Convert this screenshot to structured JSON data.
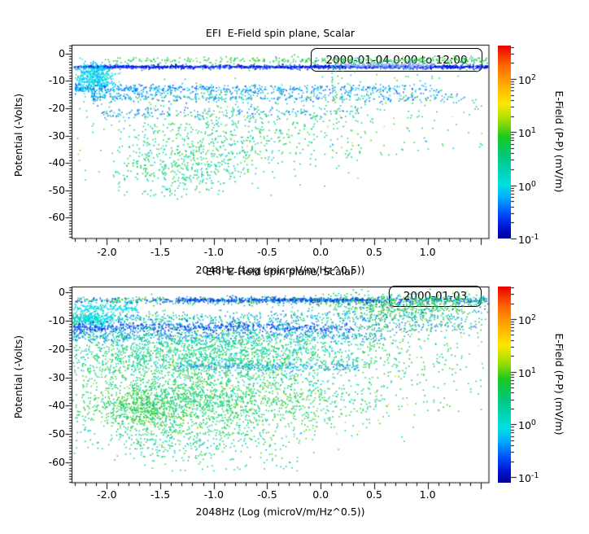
{
  "figure": {
    "background": "#ffffff",
    "text_color": "#000000"
  },
  "colorbar": {
    "label": "E-Field (P-P) (mV/m)",
    "ticks": [
      {
        "base": "10",
        "exp": "2"
      },
      {
        "base": "10",
        "exp": "1"
      },
      {
        "base": "10",
        "exp": "0"
      },
      {
        "base": "10",
        "exp": "-1"
      }
    ],
    "scale": "log",
    "min": 0.1,
    "max": 400
  },
  "plots": [
    {
      "title": "EFI  E-Field spin plane, Scalar",
      "legend": "2000-01-04 0:00 to 12:00",
      "xlabel": "2048Hz (Log (microV/m/Hz^0.5))",
      "ylabel": "Potential (-Volts)",
      "x_ticks": [
        "-2.0",
        "-1.5",
        "-1.0",
        "-0.5",
        "0.0",
        "0.5",
        "1.0"
      ],
      "y_ticks": [
        "0",
        "-10",
        "-20",
        "-30",
        "-40",
        "-50",
        "-60"
      ]
    },
    {
      "title": "EFI  E-Field spin plane, Scalar",
      "legend": "2000-01-03",
      "xlabel": "2048Hz (Log (microV/m/Hz^0.5))",
      "ylabel": "Potential (-Volts)",
      "x_ticks": [
        "-2.0",
        "-1.5",
        "-1.0",
        "-0.5",
        "0.0",
        "0.5",
        "1.0"
      ],
      "y_ticks": [
        "0",
        "-10",
        "-20",
        "-30",
        "-40",
        "-50",
        "-60"
      ]
    }
  ],
  "colormap_stops": [
    [
      0.0,
      "#e80000"
    ],
    [
      0.1,
      "#ff6400"
    ],
    [
      0.2,
      "#ffaa00"
    ],
    [
      0.3,
      "#ffe600"
    ],
    [
      0.38,
      "#a8e000"
    ],
    [
      0.47,
      "#1ec81e"
    ],
    [
      0.57,
      "#00c878"
    ],
    [
      0.65,
      "#00d2b4"
    ],
    [
      0.72,
      "#00e0e0"
    ],
    [
      0.79,
      "#00aaff"
    ],
    [
      0.87,
      "#0050ff"
    ],
    [
      0.94,
      "#0014d2"
    ],
    [
      1.0,
      "#000096"
    ]
  ],
  "chart_data": [
    {
      "type": "scatter",
      "title": "EFI  E-Field spin plane, Scalar",
      "subtitle": "2000-01-04 0:00 to 12:00",
      "xlabel": "2048Hz (Log (microV/m/Hz^0.5))",
      "ylabel": "Potential (-Volts)",
      "xlim": [
        -2.33,
        1.57
      ],
      "ylim": [
        -67.65,
        3.05
      ],
      "grid": false,
      "legend_position": "top-right",
      "color_scale": {
        "label": "E-Field (P-P) (mV/m)",
        "type": "log",
        "min": 0.1,
        "max": 400
      },
      "clusters": [
        {
          "kind": "hband",
          "y": -2.3,
          "ysig": 0.55,
          "x0": -2.05,
          "x1": 1.56,
          "pow": 0.75,
          "n": 380,
          "colors": [
            [
              "#2fcf2f",
              5
            ],
            [
              "#00c853",
              3
            ],
            [
              "#57d733",
              2
            ],
            [
              "#00cfae",
              1
            ],
            [
              "#2e6bff",
              0.4
            ]
          ]
        },
        {
          "kind": "hband",
          "y": -4.7,
          "ysig": 0.38,
          "x0": -2.32,
          "x1": 1.56,
          "pow": 1,
          "n": 950,
          "colors": [
            [
              "#0000c8",
              4
            ],
            [
              "#0033ee",
              4
            ],
            [
              "#2a5cff",
              2
            ],
            [
              "#0090ff",
              1
            ],
            [
              "#8fa3ff",
              0.7
            ]
          ]
        },
        {
          "kind": "hband",
          "y": -4.65,
          "ysig": 0.13,
          "x0": -2.32,
          "x1": 1.56,
          "pow": 1,
          "n": 600,
          "colors": [
            [
              "#0000c8",
              3
            ],
            [
              "#0033ee",
              3
            ],
            [
              "#1e4eff",
              2
            ]
          ]
        },
        {
          "kind": "hband",
          "y": -4.2,
          "ysig": 0.55,
          "x0": 0.22,
          "x1": 1.05,
          "pow": 1,
          "n": 190,
          "colors": [
            [
              "#9fb0ff",
              3
            ],
            [
              "#7c9bff",
              2
            ],
            [
              "#b8c4ff",
              1.5
            ],
            [
              "#4e7dff",
              1
            ]
          ]
        },
        {
          "kind": "blob",
          "cx": -2.12,
          "cy": -8.5,
          "sx": 0.1,
          "sy": 2.6,
          "n": 450,
          "colors": [
            [
              "#00cfff",
              3
            ],
            [
              "#00e6d2",
              3
            ],
            [
              "#00aaff",
              2
            ],
            [
              "#38f0c8",
              1
            ]
          ]
        },
        {
          "kind": "hband",
          "y": -12.6,
          "ysig": 0.75,
          "x0": -2.3,
          "x1": 1.1,
          "pow": 1.6,
          "n": 520,
          "colors": [
            [
              "#00b4ff",
              3
            ],
            [
              "#0066ff",
              2
            ],
            [
              "#00dce6",
              2
            ],
            [
              "#1540e6",
              1
            ]
          ]
        },
        {
          "kind": "hband",
          "y": -15.6,
          "ysig": 1.05,
          "x0": -2.15,
          "x1": 1.35,
          "pow": 1.4,
          "n": 470,
          "colors": [
            [
              "#0f52ff",
              2
            ],
            [
              "#00c8dc",
              2
            ],
            [
              "#27c85a",
              2
            ],
            [
              "#00a5ff",
              1.5
            ],
            [
              "#16b5f0",
              1
            ]
          ]
        },
        {
          "kind": "hband",
          "y": -21.5,
          "ysig": 1.0,
          "x0": -2.05,
          "x1": 0.35,
          "pow": 1.2,
          "n": 190,
          "colors": [
            [
              "#2e6bff",
              2
            ],
            [
              "#00c8d2",
              2
            ],
            [
              "#38cd70",
              1
            ]
          ]
        },
        {
          "kind": "blob",
          "cx": -0.85,
          "cy": -29,
          "sx": 0.62,
          "sy": 7.5,
          "n": 640,
          "colors": [
            [
              "#2ecf63",
              3
            ],
            [
              "#00d7ab",
              3
            ],
            [
              "#49d235",
              2
            ],
            [
              "#00c4cf",
              1.5
            ],
            [
              "#9fdc3c",
              0.3
            ]
          ]
        },
        {
          "kind": "blob",
          "cx": -1.3,
          "cy": -41,
          "sx": 0.33,
          "sy": 4.2,
          "n": 320,
          "colors": [
            [
              "#00d7b4",
              3
            ],
            [
              "#2fcf4f",
              2
            ],
            [
              "#00c3e0",
              1.5
            ],
            [
              "#45d728",
              1
            ]
          ]
        },
        {
          "kind": "spray",
          "x0": 0.1,
          "x1": 1.52,
          "y0": -3,
          "y1": -38,
          "pow": 1.8,
          "taper": 1.4,
          "n": 170,
          "colors": [
            [
              "#35cf45",
              3
            ],
            [
              "#00cfa0",
              2
            ],
            [
              "#ffd21e",
              0.5
            ],
            [
              "#ff9a1e",
              0.25
            ],
            [
              "#00b4ff",
              0.5
            ]
          ]
        },
        {
          "kind": "spray",
          "x0": -1.95,
          "x1": -0.9,
          "y0": -44,
          "y1": -52,
          "pow": 1,
          "taper": 1,
          "n": 55,
          "colors": [
            [
              "#00cfc0",
              2
            ],
            [
              "#39cf4f",
              1
            ]
          ]
        }
      ]
    },
    {
      "type": "scatter",
      "title": "EFI  E-Field spin plane, Scalar",
      "subtitle": "2000-01-03",
      "xlabel": "2048Hz (Log (microV/m/Hz^0.5))",
      "ylabel": "Potential (-Volts)",
      "xlim": [
        -2.33,
        1.57
      ],
      "ylim": [
        -67.3,
        2.0
      ],
      "grid": false,
      "legend_position": "top-right",
      "color_scale": {
        "label": "E-Field (P-P) (mV/m)",
        "type": "log",
        "min": 0.1,
        "max": 400
      },
      "clusters": [
        {
          "kind": "hband",
          "y": -2.6,
          "ysig": 0.7,
          "x0": -2.3,
          "x1": 1.56,
          "pow": 0.9,
          "n": 850,
          "colors": [
            [
              "#2bbf3a",
              3
            ],
            [
              "#0040ee",
              2.5
            ],
            [
              "#00c89b",
              2
            ],
            [
              "#2a6aff",
              1.5
            ],
            [
              "#00b4ff",
              1
            ]
          ]
        },
        {
          "kind": "hband",
          "y": -2.4,
          "ysig": 0.32,
          "x0": -1.35,
          "x1": 0.55,
          "pow": 1,
          "n": 340,
          "colors": [
            [
              "#0031dd",
              3
            ],
            [
              "#1e5aff",
              2
            ],
            [
              "#0080ff",
              1
            ]
          ]
        },
        {
          "kind": "blob",
          "cx": 0.75,
          "cy": -4.2,
          "sx": 0.45,
          "sy": 2.3,
          "n": 520,
          "colors": [
            [
              "#2fc53a",
              3
            ],
            [
              "#00c87d",
              2
            ],
            [
              "#47d22e",
              2
            ],
            [
              "#0055ff",
              0.8
            ],
            [
              "#00c3e8",
              0.8
            ]
          ]
        },
        {
          "kind": "hband",
          "y": -5.2,
          "ysig": 0.8,
          "x0": -2.32,
          "x1": -1.72,
          "pow": 1,
          "n": 150,
          "colors": [
            [
              "#00d2ff",
              3
            ],
            [
              "#00e0cd",
              2
            ]
          ]
        },
        {
          "kind": "hband",
          "y": -9,
          "ysig": 1.2,
          "x0": -2.32,
          "x1": 1.5,
          "pow": 1.35,
          "n": 620,
          "colors": [
            [
              "#00c8b4",
              3
            ],
            [
              "#2fc84f",
              2
            ],
            [
              "#00b4ff",
              2
            ],
            [
              "#1e6eff",
              1
            ]
          ]
        },
        {
          "kind": "blob",
          "cx": -2.14,
          "cy": -9,
          "sx": 0.1,
          "sy": 1.3,
          "n": 200,
          "colors": [
            [
              "#00dcf0",
              3
            ],
            [
              "#00e6c3",
              2
            ]
          ]
        },
        {
          "kind": "hband",
          "y": -12.2,
          "ysig": 0.95,
          "x0": -2.32,
          "x1": 0.3,
          "pow": 1.15,
          "n": 680,
          "colors": [
            [
              "#0f46ff",
              3
            ],
            [
              "#0028c8",
              2
            ],
            [
              "#0096ff",
              1.5
            ],
            [
              "#00c8e6",
              1
            ]
          ]
        },
        {
          "kind": "hband",
          "y": -12,
          "ysig": 0.8,
          "x0": 0.3,
          "x1": 1.45,
          "pow": 1,
          "n": 110,
          "colors": [
            [
              "#2e6bff",
              2
            ],
            [
              "#2fc84f",
              2
            ],
            [
              "#00c8d2",
              1
            ]
          ]
        },
        {
          "kind": "hband",
          "y": -15.3,
          "ysig": 1.15,
          "x0": -2.32,
          "x1": 0.6,
          "pow": 1.3,
          "n": 480,
          "colors": [
            [
              "#1e64ff",
              2.5
            ],
            [
              "#00bedc",
              2
            ],
            [
              "#00d29b",
              1.5
            ]
          ]
        },
        {
          "kind": "blob",
          "cx": -1.0,
          "cy": -21.5,
          "sx": 0.85,
          "sy": 4.5,
          "n": 2000,
          "colors": [
            [
              "#00dcb4",
              3
            ],
            [
              "#2fd25a",
              2.5
            ],
            [
              "#00ccd7",
              2
            ],
            [
              "#35c835",
              1.5
            ],
            [
              "#8cdc46",
              0.3
            ]
          ]
        },
        {
          "kind": "hband",
          "y": -26,
          "ysig": 0.8,
          "x0": -1.35,
          "x1": 0.35,
          "pow": 1,
          "n": 250,
          "colors": [
            [
              "#2e7bff",
              2
            ],
            [
              "#00aadc",
              2
            ],
            [
              "#00d2c3",
              1.5
            ]
          ]
        },
        {
          "kind": "blob",
          "cx": -1.05,
          "cy": -37.5,
          "sx": 0.75,
          "sy": 7,
          "n": 2200,
          "colors": [
            [
              "#2fd24f",
              3
            ],
            [
              "#00d7a5",
              2.5
            ],
            [
              "#3cd22e",
              2
            ],
            [
              "#00c8dc",
              1.2
            ],
            [
              "#a5dc3c",
              0.4
            ],
            [
              "#ffe01e",
              0.12
            ]
          ]
        },
        {
          "kind": "blob",
          "cx": -1.62,
          "cy": -41,
          "sx": 0.22,
          "sy": 3.8,
          "n": 400,
          "colors": [
            [
              "#2bc83a",
              3
            ],
            [
              "#3fd22a",
              2
            ],
            [
              "#00c87d",
              1.5
            ]
          ]
        },
        {
          "kind": "spray",
          "x0": 0.45,
          "x1": 1.5,
          "y0": -4,
          "y1": -42,
          "pow": 1.7,
          "taper": 1.5,
          "n": 230,
          "colors": [
            [
              "#35c845",
              3
            ],
            [
              "#00c8a0",
              2
            ],
            [
              "#ffd21e",
              0.4
            ],
            [
              "#b4dc28",
              0.5
            ]
          ]
        },
        {
          "kind": "blob",
          "cx": -1.35,
          "cy": -52,
          "sx": 0.5,
          "sy": 3.2,
          "n": 280,
          "colors": [
            [
              "#00d2b4",
              2.5
            ],
            [
              "#35cd45",
              2
            ],
            [
              "#00c3e6",
              1
            ]
          ]
        },
        {
          "kind": "spray",
          "x0": -1.7,
          "x1": -0.2,
          "y0": -57,
          "y1": -63,
          "pow": 1,
          "taper": 1,
          "n": 45,
          "colors": [
            [
              "#00cfc0",
              2
            ],
            [
              "#39cf4f",
              1
            ]
          ]
        }
      ]
    }
  ]
}
